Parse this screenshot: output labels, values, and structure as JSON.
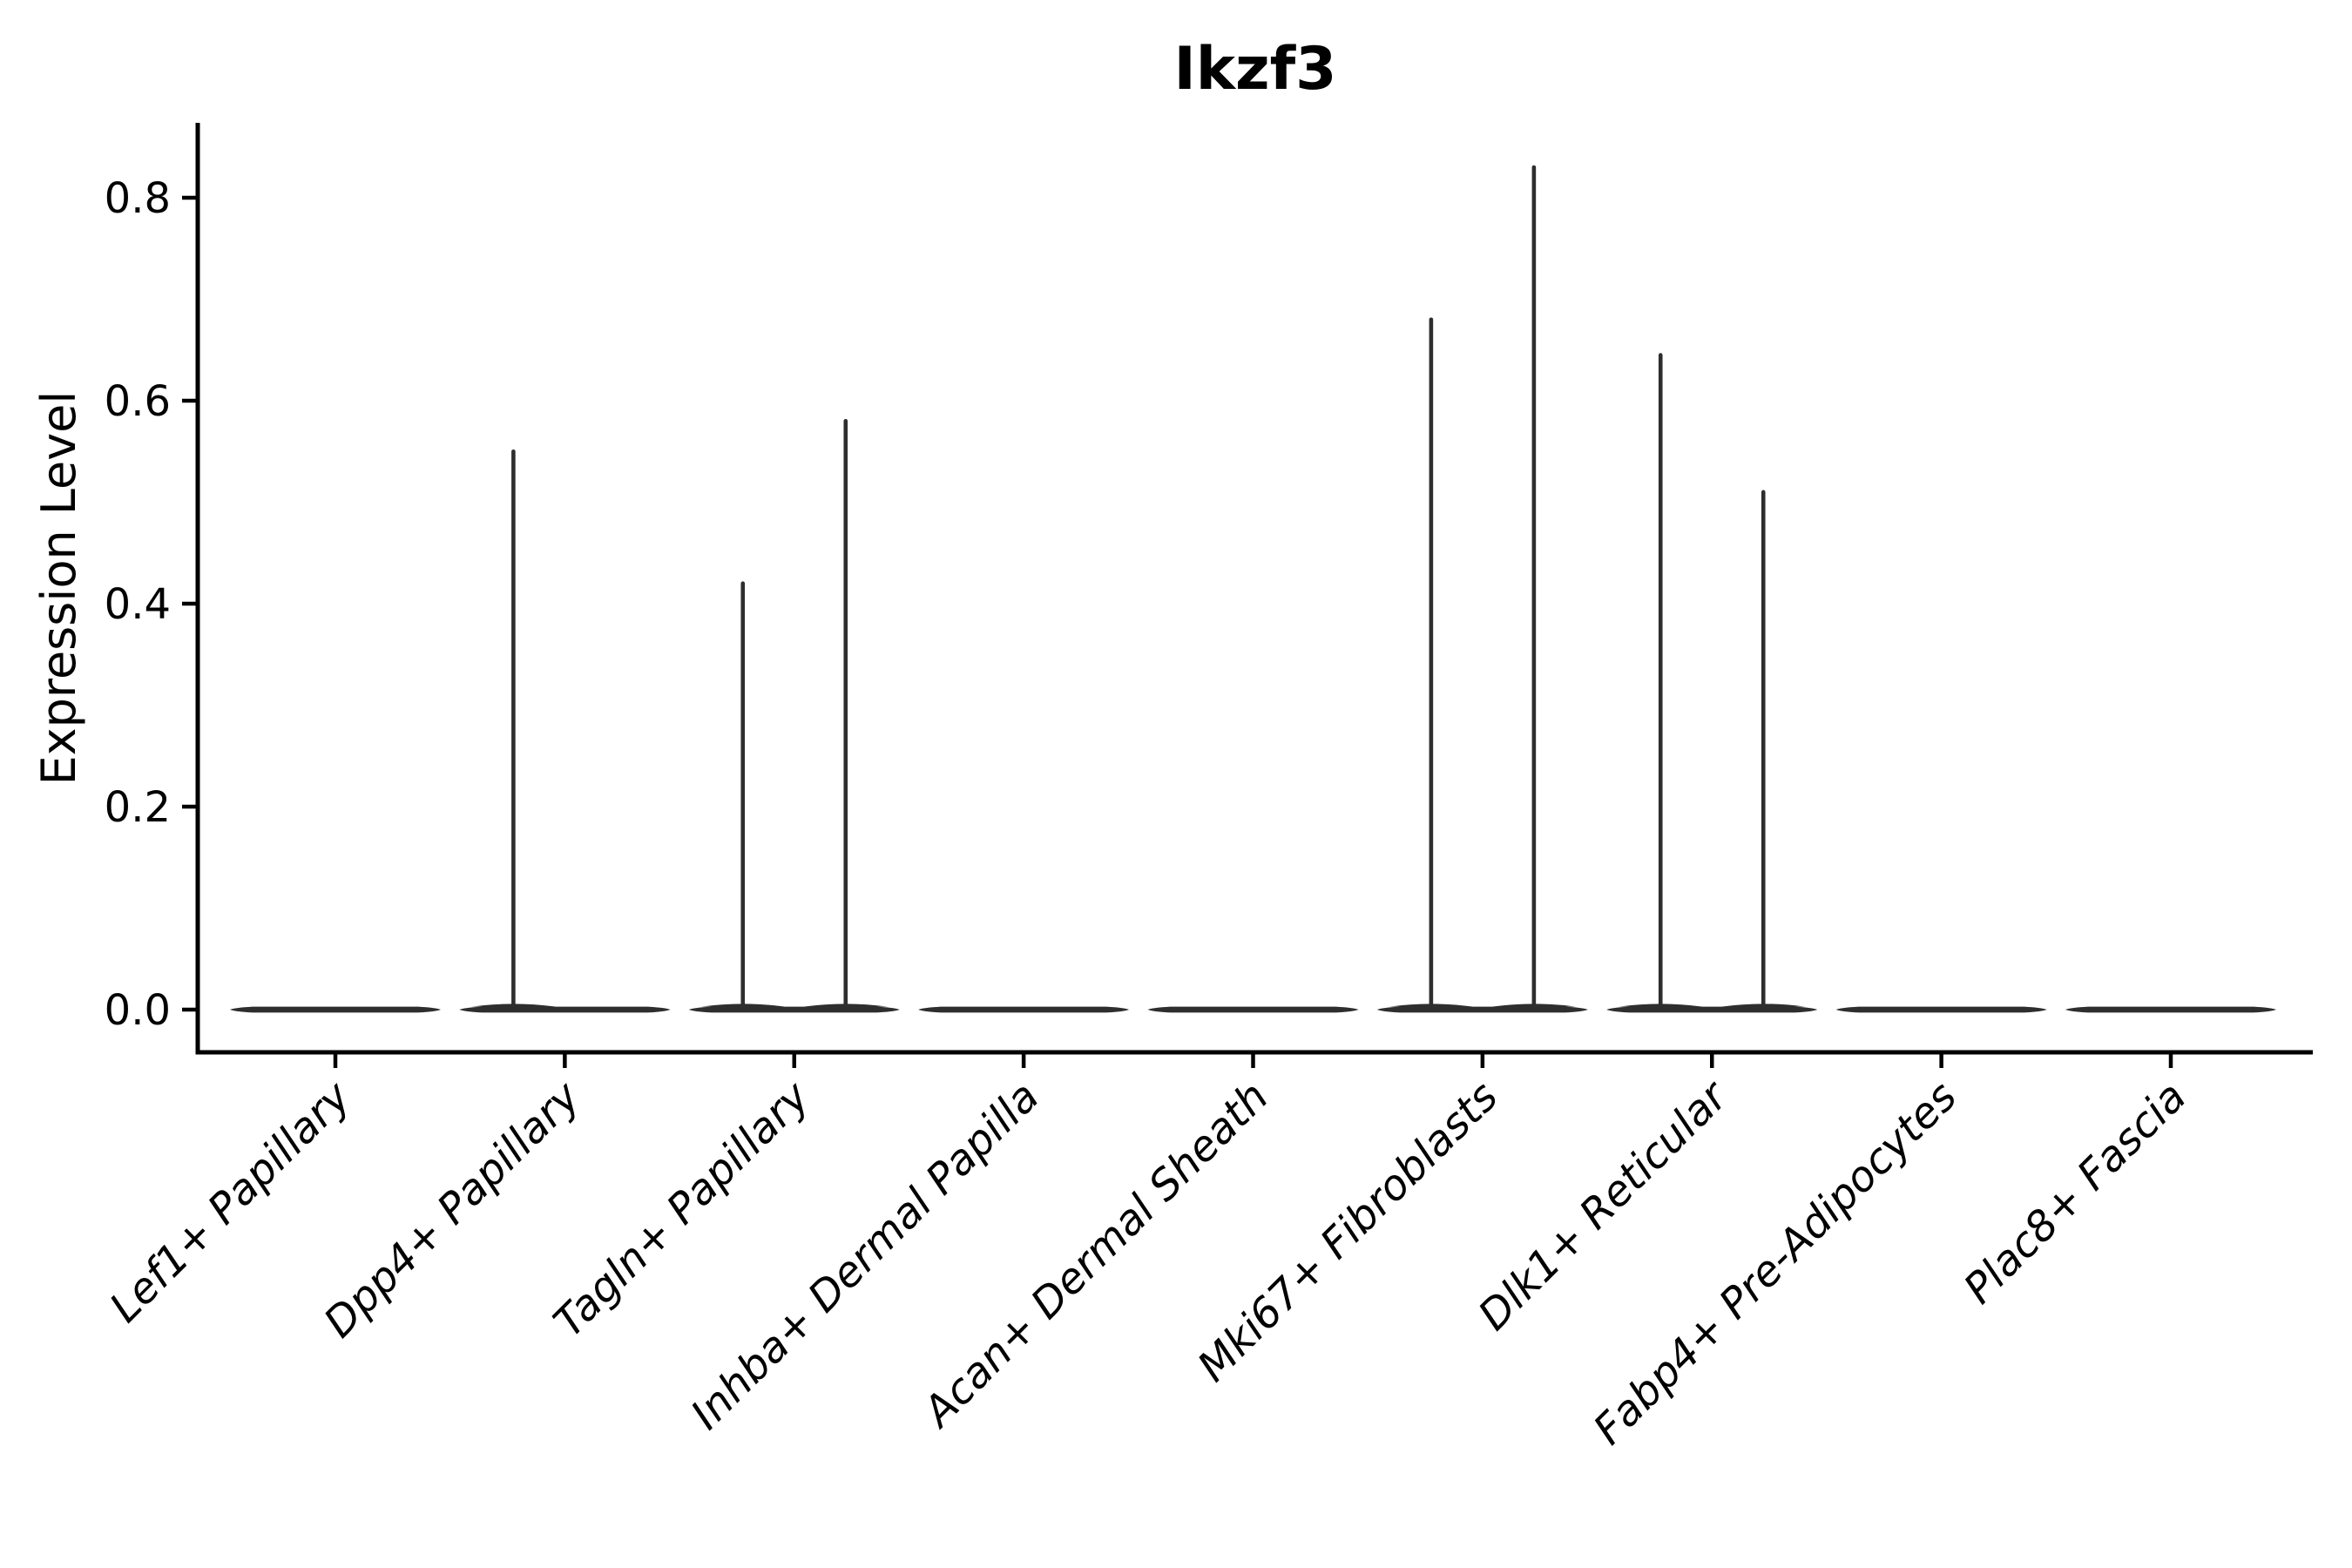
{
  "chart_data": {
    "type": "violin",
    "title": "Ikzf3",
    "ylabel": "Expression Level",
    "xlabel": "",
    "categories": [
      "Lef1+ Papillary",
      "Dpp4+ Papillary",
      "Tagln+ Papillary",
      "Inhba+ Dermal Papilla",
      "Acan+ Dermal Sheath",
      "Mki67+ Fibroblasts",
      "Dlk1+ Reticular",
      "Fabp4+ Pre-Adipocytes",
      "Plac8+ Fascia"
    ],
    "yticks": [
      0.0,
      0.2,
      0.4,
      0.6,
      0.8
    ],
    "ytick_labels": [
      "0.0",
      "0.2",
      "0.4",
      "0.6",
      "0.8"
    ],
    "ylim": [
      -0.042,
      0.874
    ],
    "grid": false,
    "legend": "none",
    "violins": [
      {
        "category": "Lef1+ Papillary",
        "baseline_value": 0.0,
        "spike_maxima": []
      },
      {
        "category": "Dpp4+ Papillary",
        "baseline_value": 0.0,
        "spike_maxima": [
          {
            "position": "left",
            "value": 0.55
          }
        ]
      },
      {
        "category": "Tagln+ Papillary",
        "baseline_value": 0.0,
        "spike_maxima": [
          {
            "position": "left",
            "value": 0.42
          },
          {
            "position": "right",
            "value": 0.58
          }
        ]
      },
      {
        "category": "Inhba+ Dermal Papilla",
        "baseline_value": 0.0,
        "spike_maxima": []
      },
      {
        "category": "Acan+ Dermal Sheath",
        "baseline_value": 0.0,
        "spike_maxima": []
      },
      {
        "category": "Mki67+ Fibroblasts",
        "baseline_value": 0.0,
        "spike_maxima": [
          {
            "position": "left",
            "value": 0.68
          },
          {
            "position": "right",
            "value": 0.83
          }
        ]
      },
      {
        "category": "Dlk1+ Reticular",
        "baseline_value": 0.0,
        "spike_maxima": [
          {
            "position": "left",
            "value": 0.645
          },
          {
            "position": "right",
            "value": 0.51
          }
        ]
      },
      {
        "category": "Fabp4+ Pre-Adipocytes",
        "baseline_value": 0.0,
        "spike_maxima": []
      },
      {
        "category": "Plac8+ Fascia",
        "baseline_value": 0.0,
        "spike_maxima": []
      }
    ],
    "colors": {
      "violin": "#2e2e2e",
      "axis": "#000000",
      "text": "#000000",
      "background": "#ffffff"
    }
  }
}
